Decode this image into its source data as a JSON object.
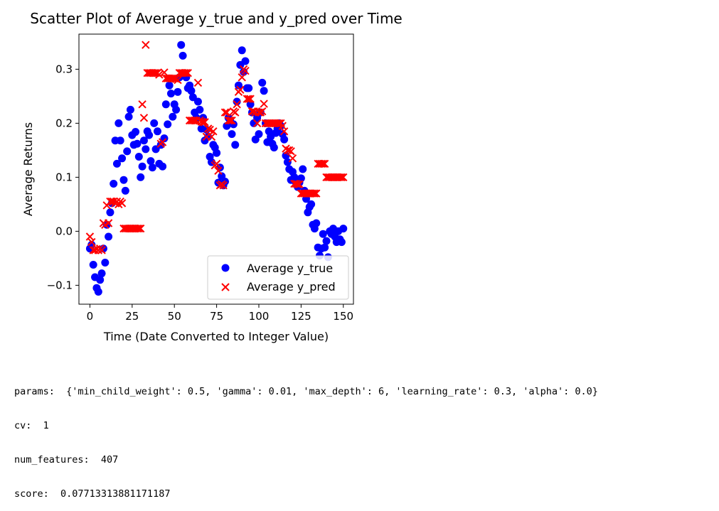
{
  "chart_data": {
    "type": "scatter",
    "title": "Scatter Plot of Average y_true and y_pred over Time",
    "xlabel": "Time (Date Converted to Integer Value)",
    "ylabel": "Average Returns",
    "xlim": [
      -6.5,
      156
    ],
    "ylim": [
      -0.135,
      0.365
    ],
    "xticks": [
      0,
      25,
      50,
      75,
      100,
      125,
      150
    ],
    "yticks": [
      -0.1,
      0.0,
      0.1,
      0.2,
      0.3
    ],
    "xtick_labels": [
      "0",
      "25",
      "50",
      "75",
      "100",
      "125",
      "150"
    ],
    "ytick_labels": [
      "−0.1",
      "0.0",
      "0.1",
      "0.2",
      "0.3"
    ],
    "legend_position": "lower-right",
    "grid": false,
    "series": [
      {
        "name": "Average y_true",
        "marker": "circle",
        "color": "#0000ff",
        "x": [
          0,
          1,
          2,
          3,
          4,
          5,
          6,
          7,
          8,
          9,
          10,
          11,
          12,
          13,
          14,
          15,
          16,
          17,
          18,
          19,
          20,
          21,
          22,
          23,
          24,
          25,
          26,
          27,
          28,
          29,
          30,
          31,
          32,
          33,
          34,
          35,
          36,
          37,
          38,
          39,
          40,
          41,
          42,
          43,
          44,
          45,
          46,
          47,
          48,
          49,
          50,
          51,
          52,
          53,
          54,
          55,
          56,
          57,
          58,
          59,
          60,
          61,
          62,
          63,
          64,
          65,
          66,
          67,
          68,
          69,
          70,
          71,
          72,
          73,
          74,
          75,
          76,
          77,
          78,
          79,
          80,
          81,
          82,
          83,
          84,
          85,
          86,
          87,
          88,
          89,
          90,
          91,
          92,
          93,
          94,
          95,
          96,
          97,
          98,
          99,
          100,
          101,
          102,
          103,
          104,
          105,
          106,
          107,
          108,
          109,
          110,
          111,
          112,
          113,
          114,
          115,
          116,
          117,
          118,
          119,
          120,
          121,
          122,
          123,
          124,
          125,
          126,
          127,
          128,
          129,
          130,
          131,
          132,
          133,
          134,
          135,
          136,
          137,
          138,
          139,
          140,
          141,
          142,
          143,
          144,
          145,
          146,
          147,
          148,
          149,
          150
        ],
        "y": [
          -0.032,
          -0.025,
          -0.062,
          -0.085,
          -0.105,
          -0.112,
          -0.09,
          -0.078,
          -0.032,
          -0.058,
          0.012,
          -0.01,
          0.035,
          0.052,
          0.088,
          0.168,
          0.125,
          0.2,
          0.168,
          0.135,
          0.095,
          0.075,
          0.148,
          0.212,
          0.225,
          0.178,
          0.16,
          0.184,
          0.162,
          0.138,
          0.1,
          0.12,
          0.168,
          0.152,
          0.185,
          0.178,
          0.13,
          0.118,
          0.2,
          0.152,
          0.185,
          0.125,
          0.16,
          0.12,
          0.172,
          0.235,
          0.198,
          0.27,
          0.255,
          0.212,
          0.235,
          0.225,
          0.258,
          0.285,
          0.345,
          0.325,
          0.29,
          0.285,
          0.265,
          0.27,
          0.26,
          0.248,
          0.22,
          0.21,
          0.24,
          0.225,
          0.19,
          0.21,
          0.168,
          0.188,
          0.175,
          0.138,
          0.128,
          0.16,
          0.155,
          0.145,
          0.09,
          0.118,
          0.102,
          0.085,
          0.092,
          0.195,
          0.21,
          0.205,
          0.18,
          0.198,
          0.16,
          0.24,
          0.27,
          0.308,
          0.335,
          0.295,
          0.315,
          0.265,
          0.265,
          0.235,
          0.22,
          0.2,
          0.17,
          0.21,
          0.18,
          0.22,
          0.275,
          0.26,
          0.2,
          0.165,
          0.185,
          0.175,
          0.162,
          0.155,
          0.182,
          0.19,
          0.2,
          0.195,
          0.18,
          0.17,
          0.14,
          0.128,
          0.115,
          0.095,
          0.11,
          0.1,
          0.09,
          0.082,
          0.09,
          0.098,
          0.115,
          0.075,
          0.06,
          0.035,
          0.045,
          0.05,
          0.012,
          0.005,
          0.015,
          -0.03,
          -0.045,
          -0.032,
          -0.005,
          -0.03,
          -0.018,
          -0.048,
          0.0,
          -0.005,
          0.005,
          -0.01,
          -0.02,
          0.0,
          -0.015,
          -0.02,
          0.005
        ]
      },
      {
        "name": "Average y_pred",
        "marker": "x",
        "color": "#ff0000",
        "x": [
          0,
          1,
          2,
          3,
          4,
          5,
          6,
          7,
          8,
          9,
          10,
          11,
          12,
          13,
          14,
          15,
          16,
          17,
          18,
          19,
          20,
          21,
          22,
          23,
          24,
          25,
          26,
          27,
          28,
          29,
          30,
          31,
          32,
          33,
          34,
          35,
          36,
          37,
          38,
          39,
          40,
          41,
          42,
          43,
          44,
          45,
          46,
          47,
          48,
          49,
          50,
          51,
          52,
          53,
          54,
          55,
          56,
          57,
          58,
          59,
          60,
          61,
          62,
          63,
          64,
          65,
          66,
          67,
          68,
          69,
          70,
          71,
          72,
          73,
          74,
          75,
          76,
          77,
          78,
          79,
          80,
          81,
          82,
          83,
          84,
          85,
          86,
          87,
          88,
          89,
          90,
          91,
          92,
          93,
          94,
          95,
          96,
          97,
          98,
          99,
          100,
          101,
          102,
          103,
          104,
          105,
          106,
          107,
          108,
          109,
          110,
          111,
          112,
          113,
          114,
          115,
          116,
          117,
          118,
          119,
          120,
          121,
          122,
          123,
          124,
          125,
          126,
          127,
          128,
          129,
          130,
          131,
          132,
          133,
          134,
          135,
          136,
          137,
          138,
          139,
          140,
          141,
          142,
          143,
          144,
          145,
          146,
          147,
          148,
          149,
          150
        ],
        "y": [
          -0.01,
          -0.02,
          -0.035,
          -0.035,
          -0.033,
          -0.035,
          -0.032,
          -0.035,
          0.015,
          0.012,
          0.048,
          0.015,
          0.055,
          0.055,
          0.055,
          0.052,
          0.055,
          0.05,
          0.055,
          0.052,
          0.005,
          0.005,
          0.005,
          0.005,
          0.005,
          0.005,
          0.005,
          0.005,
          0.005,
          0.005,
          0.005,
          0.235,
          0.21,
          0.345,
          0.293,
          0.293,
          0.293,
          0.293,
          0.293,
          0.293,
          0.293,
          0.29,
          0.162,
          0.165,
          0.294,
          0.283,
          0.283,
          0.283,
          0.283,
          0.283,
          0.283,
          0.282,
          0.28,
          0.293,
          0.293,
          0.293,
          0.293,
          0.293,
          0.293,
          0.205,
          0.205,
          0.205,
          0.205,
          0.205,
          0.275,
          0.205,
          0.203,
          0.202,
          0.202,
          0.175,
          0.19,
          0.188,
          0.175,
          0.185,
          0.122,
          0.125,
          0.112,
          0.085,
          0.087,
          0.085,
          0.22,
          0.22,
          0.205,
          0.205,
          0.205,
          0.222,
          0.22,
          0.235,
          0.258,
          0.262,
          0.285,
          0.3,
          0.297,
          0.245,
          0.245,
          0.245,
          0.222,
          0.222,
          0.22,
          0.2,
          0.22,
          0.22,
          0.222,
          0.236,
          0.2,
          0.2,
          0.2,
          0.2,
          0.2,
          0.2,
          0.2,
          0.2,
          0.2,
          0.2,
          0.195,
          0.185,
          0.153,
          0.15,
          0.15,
          0.148,
          0.135,
          0.088,
          0.088,
          0.087,
          0.087,
          0.07,
          0.07,
          0.07,
          0.07,
          0.07,
          0.07,
          0.07,
          0.07,
          0.07,
          0.07,
          0.125,
          0.125,
          0.125,
          0.125,
          0.125,
          0.1,
          0.1,
          0.1,
          0.1,
          0.1,
          0.1,
          0.1,
          0.1,
          0.1,
          0.1,
          0.1
        ]
      }
    ]
  },
  "console": {
    "line_params": "params:  {'min_child_weight': 0.5, 'gamma': 0.01, 'max_depth': 6, 'learning_rate': 0.3, 'alpha': 0.0}",
    "line_cv": "cv:  1",
    "line_num_features": "num_features:  407",
    "line_score": "score:  0.07713313881171187"
  }
}
